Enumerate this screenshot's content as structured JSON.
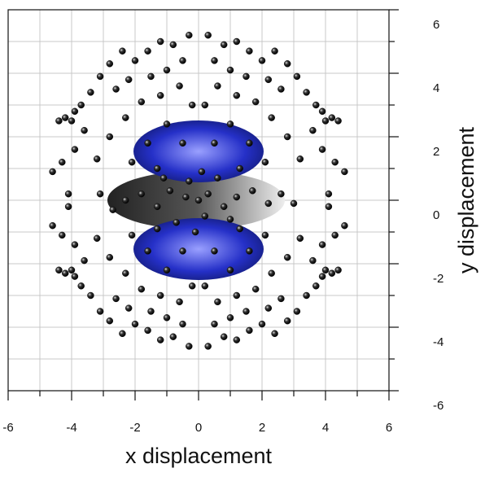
{
  "chart_data": {
    "type": "scatter",
    "x_label": "x displacement",
    "y_label": "y displacement",
    "xlim": [
      -6,
      6
    ],
    "ylim": [
      -6,
      6
    ],
    "xticks": [
      -6,
      -4,
      -2,
      0,
      2,
      4,
      6
    ],
    "yticks": [
      -6,
      -4,
      -2,
      0,
      2,
      4,
      6
    ],
    "xminorticks": [
      -5,
      -3,
      -1,
      1,
      3,
      5
    ],
    "yminorticks": [
      -5,
      -3,
      -1,
      1,
      3,
      5
    ],
    "grid": true,
    "color": "#111111",
    "x": [
      0.3,
      0.8,
      1.2,
      1.6,
      2.0,
      2.4,
      2.8,
      3.1,
      0.5,
      1.0,
      1.5,
      2.2,
      2.6,
      3.4,
      3.9,
      4.2,
      4.4,
      4.0,
      3.7,
      3.6,
      3.9,
      4.3,
      4.6,
      3.2,
      2.8,
      2.3,
      1.8,
      1.2,
      0.6,
      0.2,
      1.0,
      1.6,
      2.1,
      0.5,
      1.3,
      4.1,
      -0.3,
      -0.8,
      -1.2,
      -1.6,
      -2.0,
      -2.4,
      -2.8,
      -3.1,
      -0.5,
      -1.0,
      -1.5,
      -2.2,
      -2.6,
      -3.4,
      -3.9,
      -4.2,
      -4.4,
      -4.0,
      -3.7,
      -3.6,
      -3.9,
      -4.3,
      -4.6,
      -3.2,
      -2.8,
      -2.3,
      -1.8,
      -1.2,
      -0.6,
      -0.2,
      -1.0,
      -1.6,
      -2.1,
      -0.5,
      -1.3,
      -4.1,
      -0.3,
      -0.8,
      -1.2,
      -1.6,
      -2.0,
      -2.4,
      -2.8,
      -3.1,
      -0.5,
      -1.0,
      -1.5,
      -2.2,
      -2.6,
      -3.4,
      -3.9,
      -4.2,
      -4.4,
      -4.0,
      -3.7,
      -3.6,
      -3.9,
      -4.3,
      -4.6,
      -3.2,
      -2.8,
      -2.3,
      -1.8,
      -1.2,
      -0.6,
      -0.2,
      -1.0,
      -1.6,
      -2.1,
      -0.5,
      -1.3,
      -4.1,
      0.3,
      0.8,
      1.2,
      1.6,
      2.0,
      2.4,
      2.8,
      3.1,
      0.5,
      1.0,
      1.5,
      2.2,
      2.6,
      3.4,
      3.9,
      4.2,
      4.4,
      4.0,
      3.7,
      3.6,
      3.9,
      4.3,
      4.6,
      3.2,
      2.8,
      2.3,
      1.8,
      1.2,
      0.6,
      0.2,
      1.0,
      1.6,
      2.1,
      0.5,
      1.3,
      4.1,
      0,
      0.3,
      -0.4,
      0.8,
      -0.9,
      1.2,
      -1.3,
      1.7,
      -1.8,
      0.2,
      -0.3,
      0.6,
      -0.7,
      1.0,
      -1.1,
      2.2,
      -2.3,
      0.1,
      -0.1,
      2.6,
      -2.7,
      3.0,
      -3.1
    ],
    "y": [
      5.2,
      4.9,
      5.0,
      4.7,
      4.4,
      4.7,
      4.3,
      3.9,
      4.4,
      4.1,
      3.9,
      3.8,
      3.5,
      3.4,
      2.8,
      2.6,
      2.5,
      2.5,
      3.0,
      2.2,
      1.6,
      1.2,
      0.9,
      1.3,
      2.0,
      2.6,
      3.1,
      3.3,
      3.6,
      3.0,
      2.4,
      1.8,
      1.2,
      1.8,
      1.0,
      0.2,
      5.2,
      4.9,
      5.0,
      4.7,
      4.4,
      4.7,
      4.3,
      3.9,
      4.4,
      4.1,
      3.9,
      3.8,
      3.5,
      3.4,
      2.8,
      2.6,
      2.5,
      2.5,
      3.0,
      2.2,
      1.6,
      1.2,
      0.9,
      1.3,
      2.0,
      2.6,
      3.1,
      3.3,
      3.6,
      3.0,
      2.4,
      1.8,
      1.2,
      1.8,
      1.0,
      0.2,
      -4.6,
      -4.3,
      -4.4,
      -4.1,
      -3.9,
      -4.2,
      -3.8,
      -3.5,
      -3.9,
      -3.7,
      -3.5,
      -3.4,
      -3.1,
      -3.0,
      -2.4,
      -2.3,
      -2.2,
      -2.2,
      -2.7,
      -1.9,
      -1.4,
      -1.1,
      -0.8,
      -1.2,
      -1.8,
      -2.3,
      -2.8,
      -3.0,
      -3.2,
      -2.7,
      -2.2,
      -1.6,
      -1.1,
      -1.6,
      -0.9,
      -0.2,
      -4.6,
      -4.3,
      -4.4,
      -4.1,
      -3.9,
      -4.2,
      -3.8,
      -3.5,
      -3.9,
      -3.7,
      -3.5,
      -3.4,
      -3.1,
      -3.0,
      -2.4,
      -2.3,
      -2.2,
      -2.2,
      -2.7,
      -1.9,
      -1.4,
      -1.1,
      -0.8,
      -1.2,
      -1.8,
      -2.3,
      -2.8,
      -3.0,
      -3.2,
      -2.7,
      -2.2,
      -1.6,
      -1.1,
      -1.6,
      -0.9,
      -0.2,
      0,
      0.2,
      0.1,
      -0.2,
      0.3,
      0.1,
      -0.2,
      0.3,
      0.2,
      -0.5,
      0.6,
      0.7,
      -0.7,
      -0.6,
      0.7,
      -0.1,
      0.0,
      0.9,
      -1.0,
      0.2,
      -0.3,
      -0.1,
      0.2
    ]
  }
}
